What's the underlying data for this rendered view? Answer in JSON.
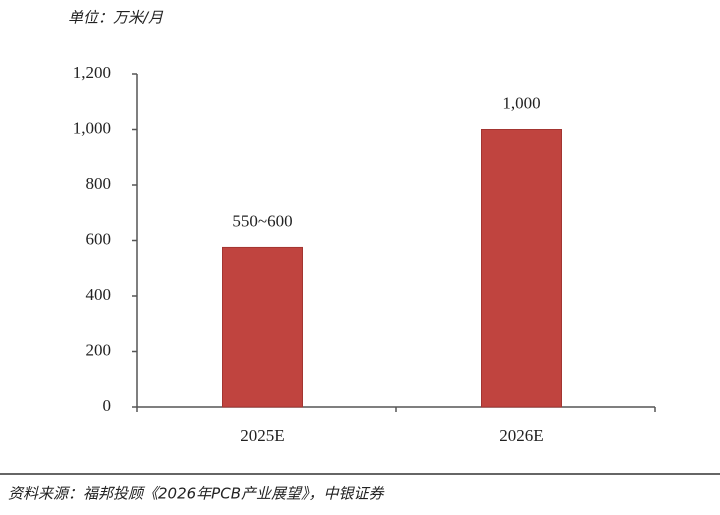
{
  "chart_data": {
    "type": "bar",
    "unit_label": "单位：万米/月",
    "categories": [
      "2025E",
      "2026E"
    ],
    "values": [
      575,
      1000
    ],
    "value_labels": [
      "550~600",
      "1,000"
    ],
    "color": "#c0443f",
    "ylim": [
      0,
      1200
    ],
    "yticks": [
      0,
      200,
      400,
      600,
      800,
      {
        "value": 1000,
        "label": "1,000"
      },
      {
        "value": 1200,
        "label": "1,200"
      }
    ],
    "source": "资料来源：福邦投顾《2026年PCB产业展望》，中银证券"
  }
}
